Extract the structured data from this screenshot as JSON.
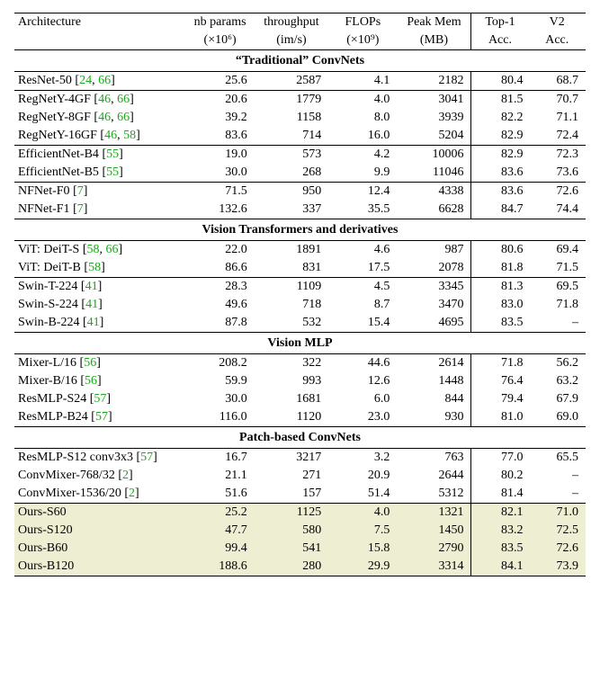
{
  "colors": {
    "cite": "#18a818",
    "highlight_bg": "#eeeed2",
    "rule": "#000000",
    "background": "#ffffff",
    "text": "#000000"
  },
  "font": {
    "family": "Times New Roman",
    "base_size_pt": 10
  },
  "header": {
    "arch": "Architecture",
    "params_t": "nb params",
    "params_b": "(×10⁶)",
    "thru_t": "throughput",
    "thru_b": "(im/s)",
    "flops_t": "FLOPs",
    "flops_b": "(×10⁹)",
    "mem_t": "Peak Mem",
    "mem_b": "(MB)",
    "top1_t": "Top-1",
    "top1_b": "Acc.",
    "v2_t": "V2",
    "v2_b": "Acc."
  },
  "sections": [
    {
      "title": "“Traditional” ConvNets",
      "groups": [
        [
          {
            "name": "ResNet-50",
            "refs": [
              "24",
              "66"
            ],
            "params": "25.6",
            "thru": "2587",
            "flops": "4.1",
            "mem": "2182",
            "top1": "80.4",
            "v2": "68.7"
          }
        ],
        [
          {
            "name": "RegNetY-4GF",
            "refs": [
              "46",
              "66"
            ],
            "params": "20.6",
            "thru": "1779",
            "flops": "4.0",
            "mem": "3041",
            "top1": "81.5",
            "v2": "70.7"
          },
          {
            "name": "RegNetY-8GF",
            "refs": [
              "46",
              "66"
            ],
            "params": "39.2",
            "thru": "1158",
            "flops": "8.0",
            "mem": "3939",
            "top1": "82.2",
            "v2": "71.1"
          },
          {
            "name": "RegNetY-16GF",
            "refs": [
              "46",
              "58"
            ],
            "params": "83.6",
            "thru": "714",
            "flops": "16.0",
            "mem": "5204",
            "top1": "82.9",
            "v2": "72.4"
          }
        ],
        [
          {
            "name": "EfficientNet-B4",
            "refs": [
              "55"
            ],
            "params": "19.0",
            "thru": "573",
            "flops": "4.2",
            "mem": "10006",
            "top1": "82.9",
            "v2": "72.3"
          },
          {
            "name": "EfficientNet-B5",
            "refs": [
              "55"
            ],
            "params": "30.0",
            "thru": "268",
            "flops": "9.9",
            "mem": "11046",
            "top1": "83.6",
            "v2": "73.6"
          }
        ],
        [
          {
            "name": "NFNet-F0",
            "refs": [
              "7"
            ],
            "params": "71.5",
            "thru": "950",
            "flops": "12.4",
            "mem": "4338",
            "top1": "83.6",
            "v2": "72.6"
          },
          {
            "name": "NFNet-F1",
            "refs": [
              "7"
            ],
            "params": "132.6",
            "thru": "337",
            "flops": "35.5",
            "mem": "6628",
            "top1": "84.7",
            "v2": "74.4"
          }
        ]
      ]
    },
    {
      "title": "Vision Transformers and derivatives",
      "groups": [
        [
          {
            "name": "ViT: DeiT-S",
            "refs": [
              "58",
              "66"
            ],
            "params": "22.0",
            "thru": "1891",
            "flops": "4.6",
            "mem": "987",
            "top1": "80.6",
            "v2": "69.4"
          },
          {
            "name": "ViT: DeiT-B",
            "refs": [
              "58"
            ],
            "params": "86.6",
            "thru": "831",
            "flops": "17.5",
            "mem": "2078",
            "top1": "81.8",
            "v2": "71.5"
          }
        ],
        [
          {
            "name": "Swin-T-224",
            "refs": [
              "41"
            ],
            "params": "28.3",
            "thru": "1109",
            "flops": "4.5",
            "mem": "3345",
            "top1": "81.3",
            "v2": "69.5"
          },
          {
            "name": "Swin-S-224",
            "refs": [
              "41"
            ],
            "params": "49.6",
            "thru": "718",
            "flops": "8.7",
            "mem": "3470",
            "top1": "83.0",
            "v2": "71.8"
          },
          {
            "name": "Swin-B-224",
            "refs": [
              "41"
            ],
            "params": "87.8",
            "thru": "532",
            "flops": "15.4",
            "mem": "4695",
            "top1": "83.5",
            "v2": "–"
          }
        ]
      ]
    },
    {
      "title": "Vision MLP",
      "groups": [
        [
          {
            "name": "Mixer-L/16",
            "refs": [
              "56"
            ],
            "params": "208.2",
            "thru": "322",
            "flops": "44.6",
            "mem": "2614",
            "top1": "71.8",
            "v2": "56.2"
          },
          {
            "name": "Mixer-B/16",
            "refs": [
              "56"
            ],
            "params": "59.9",
            "thru": "993",
            "flops": "12.6",
            "mem": "1448",
            "top1": "76.4",
            "v2": "63.2"
          },
          {
            "name": "ResMLP-S24",
            "refs": [
              "57"
            ],
            "params": "30.0",
            "thru": "1681",
            "flops": "6.0",
            "mem": "844",
            "top1": "79.4",
            "v2": "67.9"
          },
          {
            "name": "ResMLP-B24",
            "refs": [
              "57"
            ],
            "params": "116.0",
            "thru": "1120",
            "flops": "23.0",
            "mem": "930",
            "top1": "81.0",
            "v2": "69.0"
          }
        ]
      ]
    },
    {
      "title": "Patch-based ConvNets",
      "groups": [
        [
          {
            "name": "ResMLP-S12 conv3x3",
            "refs": [
              "57"
            ],
            "params": "16.7",
            "thru": "3217",
            "flops": "3.2",
            "mem": "763",
            "top1": "77.0",
            "v2": "65.5"
          },
          {
            "name": "ConvMixer-768/32",
            "refs": [
              "2"
            ],
            "params": "21.1",
            "thru": "271",
            "flops": "20.9",
            "mem": "2644",
            "top1": "80.2",
            "v2": "–"
          },
          {
            "name": "ConvMixer-1536/20",
            "refs": [
              "2"
            ],
            "params": "51.6",
            "thru": "157",
            "flops": "51.4",
            "mem": "5312",
            "top1": "81.4",
            "v2": "–"
          }
        ],
        [
          {
            "name": "Ours-S60",
            "refs": [],
            "params": "25.2",
            "thru": "1125",
            "flops": "4.0",
            "mem": "1321",
            "top1": "82.1",
            "v2": "71.0",
            "hl": true
          },
          {
            "name": "Ours-S120",
            "refs": [],
            "params": "47.7",
            "thru": "580",
            "flops": "7.5",
            "mem": "1450",
            "top1": "83.2",
            "v2": "72.5",
            "hl": true
          },
          {
            "name": "Ours-B60",
            "refs": [],
            "params": "99.4",
            "thru": "541",
            "flops": "15.8",
            "mem": "2790",
            "top1": "83.5",
            "v2": "72.6",
            "hl": true
          },
          {
            "name": "Ours-B120",
            "refs": [],
            "params": "188.6",
            "thru": "280",
            "flops": "29.9",
            "mem": "3314",
            "top1": "84.1",
            "v2": "73.9",
            "hl": true
          }
        ]
      ]
    }
  ]
}
